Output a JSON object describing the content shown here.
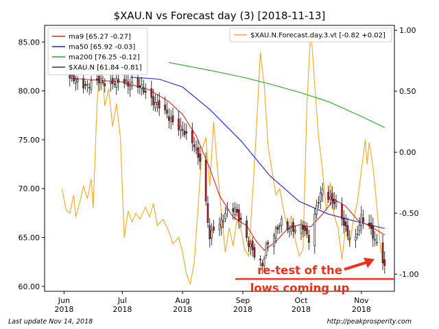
{
  "chart_data": {
    "type": "candlestick",
    "title": "$XAU.N vs Forecast day (3)  [2018-11-13]",
    "x_axis": {
      "range": [
        "2018-05-22",
        "2018-11-18"
      ],
      "ticks": [
        {
          "date": "2018-06-01",
          "label_top": "Jun",
          "label_bottom": "2018"
        },
        {
          "date": "2018-07-01",
          "label_top": "Jul",
          "label_bottom": "2018"
        },
        {
          "date": "2018-08-01",
          "label_top": "Aug",
          "label_bottom": "2018"
        },
        {
          "date": "2018-09-01",
          "label_top": "Sep",
          "label_bottom": "2018"
        },
        {
          "date": "2018-10-01",
          "label_top": "Oct",
          "label_bottom": "2018"
        },
        {
          "date": "2018-11-01",
          "label_top": "Nov",
          "label_bottom": "2018"
        }
      ]
    },
    "y_left": {
      "range": [
        59.5,
        86.7
      ],
      "ticks": [
        60,
        65,
        70,
        75,
        80,
        85
      ],
      "tick_labels": [
        "60.00",
        "65.00",
        "70.00",
        "75.00",
        "80.00",
        "85.00"
      ]
    },
    "y_right": {
      "range": [
        -1.14,
        1.04
      ],
      "ticks": [
        -1,
        -0.5,
        0,
        0.5,
        1
      ],
      "tick_labels": [
        "-1.00",
        "-0.50",
        "0.00",
        "0.50",
        "1.00"
      ]
    },
    "legend_left": {
      "placement": "upper-left",
      "items": [
        {
          "label": "ma9 [65.27 -0.27]",
          "color": "#d62728",
          "key": "ma9"
        },
        {
          "label": "ma50 [65.92 -0.03]",
          "color": "#1f1fd0",
          "key": "ma50"
        },
        {
          "label": "ma200 [76.25 -0.12]",
          "color": "#2ca02c",
          "key": "ma200"
        },
        {
          "label": "$XAU.N [61.84 -0.81]",
          "color": "#333333",
          "key": "price"
        }
      ]
    },
    "legend_right": {
      "placement": "upper-right",
      "items": [
        {
          "label": "$XAU.N.Forecast.day.3.vt [-0.82 +0.02]",
          "color": "#f5a623",
          "key": "forecast"
        }
      ]
    },
    "annotation": {
      "lines": [
        "re-test of the",
        "lows coming up"
      ],
      "color": "#e8321e"
    },
    "colors": {
      "up": "#ffffff",
      "down": "#d62728",
      "wick": "#000000",
      "ma9": "#d62728",
      "ma50": "#1f1fd0",
      "ma200": "#2ca02c",
      "forecast": "#f5a623"
    },
    "price_anchors": [
      [
        "2018-06-04",
        81.3
      ],
      [
        "2018-06-12",
        80.6
      ],
      [
        "2018-06-20",
        81.0
      ],
      [
        "2018-06-28",
        80.8
      ],
      [
        "2018-07-03",
        80.9
      ],
      [
        "2018-07-09",
        80.5
      ],
      [
        "2018-07-13",
        79.9
      ],
      [
        "2018-07-19",
        78.6
      ],
      [
        "2018-07-24",
        77.5
      ],
      [
        "2018-07-30",
        76.4
      ],
      [
        "2018-08-03",
        75.3
      ],
      [
        "2018-08-07",
        74.6
      ],
      [
        "2018-08-10",
        72.9
      ],
      [
        "2018-08-13",
        68.3
      ],
      [
        "2018-08-15",
        64.8
      ],
      [
        "2018-08-17",
        66.1
      ],
      [
        "2018-08-21",
        66.7
      ],
      [
        "2018-08-24",
        67.6
      ],
      [
        "2018-08-28",
        67.9
      ],
      [
        "2018-08-31",
        66.8
      ],
      [
        "2018-09-04",
        64.3
      ],
      [
        "2018-09-07",
        63.2
      ],
      [
        "2018-09-11",
        62.3
      ],
      [
        "2018-09-13",
        64.1
      ],
      [
        "2018-09-18",
        65.5
      ],
      [
        "2018-09-21",
        66.8
      ],
      [
        "2018-09-25",
        66.0
      ],
      [
        "2018-09-28",
        65.6
      ],
      [
        "2018-10-02",
        66.2
      ],
      [
        "2018-10-05",
        64.9
      ],
      [
        "2018-10-09",
        68.0
      ],
      [
        "2018-10-12",
        69.9
      ],
      [
        "2018-10-15",
        69.3
      ],
      [
        "2018-10-18",
        68.7
      ],
      [
        "2018-10-22",
        66.8
      ],
      [
        "2018-10-25",
        65.4
      ],
      [
        "2018-10-29",
        64.9
      ],
      [
        "2018-11-01",
        66.9
      ],
      [
        "2018-11-05",
        66.2
      ],
      [
        "2018-11-08",
        64.9
      ],
      [
        "2018-11-12",
        62.6
      ],
      [
        "2018-11-13",
        61.84
      ]
    ],
    "ma9": [
      [
        "2018-06-04",
        81.3
      ],
      [
        "2018-07-01",
        80.9
      ],
      [
        "2018-07-15",
        80.1
      ],
      [
        "2018-07-25",
        78.9
      ],
      [
        "2018-08-01",
        77.6
      ],
      [
        "2018-08-08",
        75.4
      ],
      [
        "2018-08-15",
        72.1
      ],
      [
        "2018-08-20",
        69.3
      ],
      [
        "2018-08-27",
        67.1
      ],
      [
        "2018-09-03",
        66.2
      ],
      [
        "2018-09-08",
        64.6
      ],
      [
        "2018-09-12",
        63.7
      ],
      [
        "2018-09-18",
        64.6
      ],
      [
        "2018-09-24",
        65.9
      ],
      [
        "2018-09-30",
        66.3
      ],
      [
        "2018-10-06",
        66.1
      ],
      [
        "2018-10-12",
        67.4
      ],
      [
        "2018-10-18",
        68.9
      ],
      [
        "2018-10-24",
        68.2
      ],
      [
        "2018-10-30",
        66.8
      ],
      [
        "2018-11-06",
        66.1
      ],
      [
        "2018-11-13",
        65.27
      ]
    ],
    "ma50": [
      [
        "2018-07-05",
        81.4
      ],
      [
        "2018-07-20",
        81.2
      ],
      [
        "2018-08-01",
        80.4
      ],
      [
        "2018-08-15",
        78.1
      ],
      [
        "2018-08-31",
        74.9
      ],
      [
        "2018-09-15",
        71.3
      ],
      [
        "2018-09-30",
        68.7
      ],
      [
        "2018-10-15",
        67.4
      ],
      [
        "2018-11-01",
        66.5
      ],
      [
        "2018-11-13",
        65.92
      ]
    ],
    "ma200": [
      [
        "2018-07-25",
        82.9
      ],
      [
        "2018-08-15",
        82.1
      ],
      [
        "2018-09-01",
        81.4
      ],
      [
        "2018-09-15",
        80.7
      ],
      [
        "2018-10-01",
        79.8
      ],
      [
        "2018-10-15",
        78.9
      ],
      [
        "2018-11-01",
        77.4
      ],
      [
        "2018-11-13",
        76.25
      ]
    ],
    "forecast": [
      [
        "2018-05-31",
        -0.3
      ],
      [
        "2018-06-02",
        -0.47
      ],
      [
        "2018-06-04",
        -0.5
      ],
      [
        "2018-06-06",
        -0.35
      ],
      [
        "2018-06-07",
        -0.53
      ],
      [
        "2018-06-09",
        -0.42
      ],
      [
        "2018-06-11",
        -0.28
      ],
      [
        "2018-06-13",
        -0.38
      ],
      [
        "2018-06-15",
        -0.22
      ],
      [
        "2018-06-16",
        -0.46
      ],
      [
        "2018-06-18",
        0.4
      ],
      [
        "2018-06-20",
        0.82
      ],
      [
        "2018-06-22",
        0.38
      ],
      [
        "2018-06-24",
        0.52
      ],
      [
        "2018-06-26",
        0.21
      ],
      [
        "2018-06-28",
        0.4
      ],
      [
        "2018-06-30",
        0.12
      ],
      [
        "2018-07-02",
        -0.7
      ],
      [
        "2018-07-04",
        -0.48
      ],
      [
        "2018-07-06",
        -0.57
      ],
      [
        "2018-07-08",
        -0.5
      ],
      [
        "2018-07-10",
        -0.55
      ],
      [
        "2018-07-13",
        -0.45
      ],
      [
        "2018-07-15",
        -0.53
      ],
      [
        "2018-07-17",
        -0.42
      ],
      [
        "2018-07-19",
        -0.6
      ],
      [
        "2018-07-22",
        -0.55
      ],
      [
        "2018-07-25",
        -0.65
      ],
      [
        "2018-07-27",
        -0.75
      ],
      [
        "2018-07-30",
        -0.7
      ],
      [
        "2018-08-01",
        -0.82
      ],
      [
        "2018-08-03",
        -1.0
      ],
      [
        "2018-08-05",
        -1.08
      ],
      [
        "2018-08-07",
        -0.9
      ],
      [
        "2018-08-09",
        -0.45
      ],
      [
        "2018-08-11",
        0.02
      ],
      [
        "2018-08-13",
        0.12
      ],
      [
        "2018-08-15",
        -0.28
      ],
      [
        "2018-08-17",
        0.25
      ],
      [
        "2018-08-19",
        -0.15
      ],
      [
        "2018-08-21",
        -0.5
      ],
      [
        "2018-08-23",
        -0.82
      ],
      [
        "2018-08-25",
        -0.62
      ],
      [
        "2018-08-27",
        -0.77
      ],
      [
        "2018-08-29",
        -0.55
      ],
      [
        "2018-08-31",
        -0.63
      ],
      [
        "2018-09-02",
        -0.8
      ],
      [
        "2018-09-04",
        -0.85
      ],
      [
        "2018-09-06",
        -0.35
      ],
      [
        "2018-09-08",
        0.18
      ],
      [
        "2018-09-10",
        0.82
      ],
      [
        "2018-09-12",
        0.55
      ],
      [
        "2018-09-14",
        0.05
      ],
      [
        "2018-09-16",
        -0.15
      ],
      [
        "2018-09-18",
        -0.35
      ],
      [
        "2018-09-20",
        -0.3
      ],
      [
        "2018-09-22",
        -0.48
      ],
      [
        "2018-09-24",
        -0.62
      ],
      [
        "2018-09-26",
        -0.52
      ],
      [
        "2018-09-28",
        -0.72
      ],
      [
        "2018-09-30",
        -0.85
      ],
      [
        "2018-10-02",
        -0.8
      ],
      [
        "2018-10-04",
        0.4
      ],
      [
        "2018-10-06",
        1.02
      ],
      [
        "2018-10-08",
        0.55
      ],
      [
        "2018-10-10",
        0.12
      ],
      [
        "2018-10-12",
        -0.15
      ],
      [
        "2018-10-14",
        -0.48
      ],
      [
        "2018-10-16",
        -0.25
      ],
      [
        "2018-10-18",
        -0.52
      ],
      [
        "2018-10-20",
        -0.62
      ],
      [
        "2018-10-22",
        -0.88
      ],
      [
        "2018-10-24",
        -0.6
      ],
      [
        "2018-10-26",
        -0.75
      ],
      [
        "2018-10-28",
        -0.55
      ],
      [
        "2018-10-30",
        -0.4
      ],
      [
        "2018-11-01",
        -0.15
      ],
      [
        "2018-11-03",
        0.1
      ],
      [
        "2018-11-04",
        -0.1
      ],
      [
        "2018-11-05",
        0.08
      ],
      [
        "2018-11-07",
        -0.12
      ],
      [
        "2018-11-09",
        -0.45
      ],
      [
        "2018-11-11",
        -0.82
      ],
      [
        "2018-11-13",
        -0.82
      ]
    ]
  },
  "footer": {
    "left": "Last update Nov 14, 2018",
    "right": "http://peakprosperity.com"
  }
}
